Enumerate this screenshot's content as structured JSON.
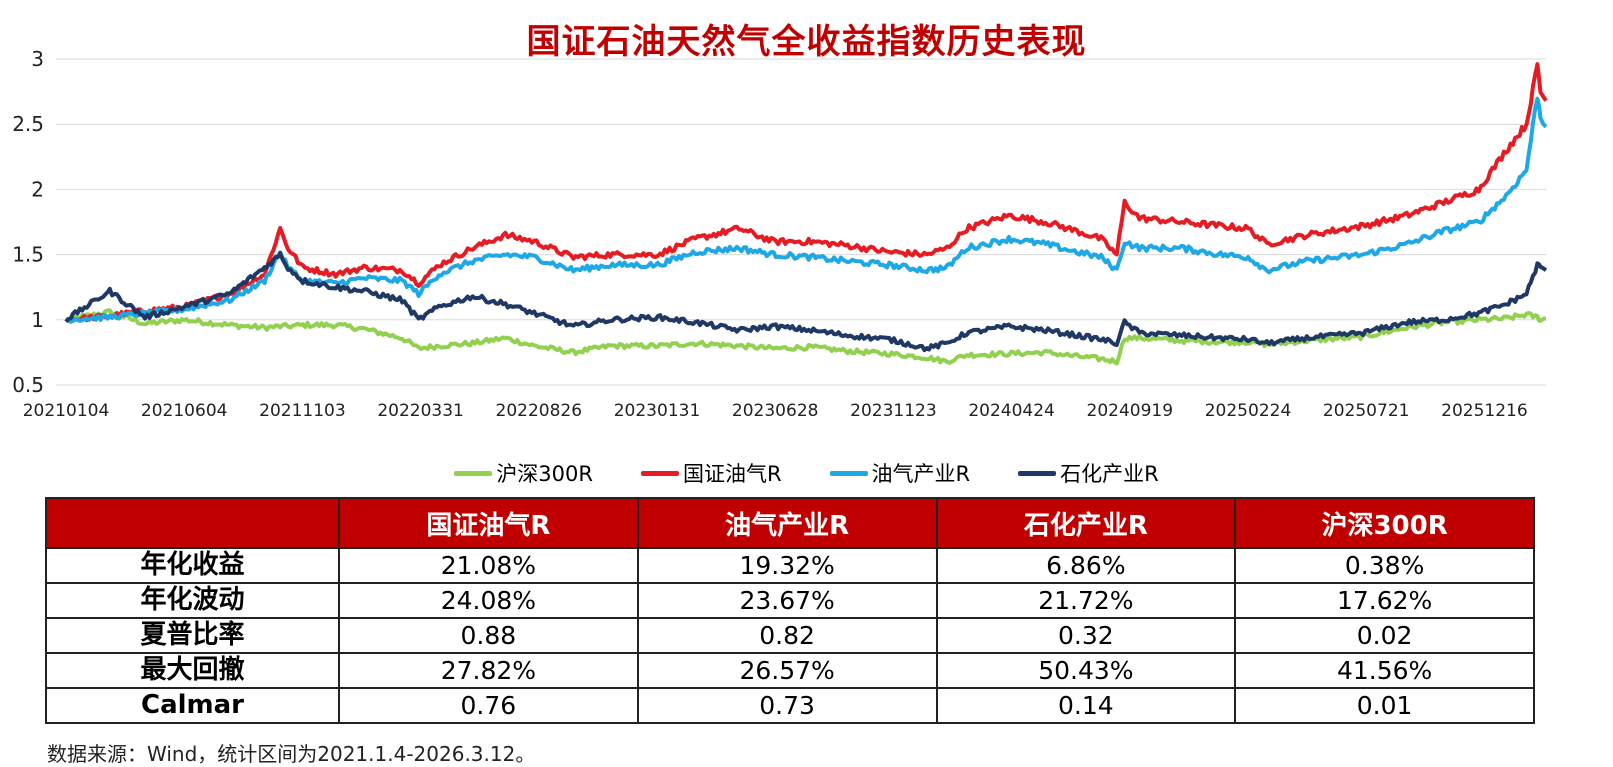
{
  "chart_data": {
    "type": "line",
    "title": "国证石油天然气全收益指数历史表现",
    "xlabel": "",
    "ylabel": "",
    "ylim": [
      0.5,
      3
    ],
    "yticks": [
      "0.5",
      "1",
      "1.5",
      "2",
      "2.5",
      "3"
    ],
    "grid": "horizontal",
    "legend_position": "bottom",
    "x_tick_labels": [
      "20210104",
      "20210604",
      "20211103",
      "20220331",
      "20220826",
      "20230131",
      "20230628",
      "20231123",
      "20240424",
      "20240919",
      "20250224",
      "20250721",
      "20251216"
    ],
    "x": [
      "2021-01-04",
      "2021-03-01",
      "2021-04-15",
      "2021-06-04",
      "2021-08-01",
      "2021-09-15",
      "2021-10-05",
      "2021-10-15",
      "2021-11-03",
      "2021-12-15",
      "2022-01-20",
      "2022-03-10",
      "2022-03-31",
      "2022-04-26",
      "2022-06-08",
      "2022-07-20",
      "2022-08-26",
      "2022-10-15",
      "2022-12-01",
      "2023-01-31",
      "2023-03-20",
      "2023-05-15",
      "2023-06-28",
      "2023-08-15",
      "2023-10-01",
      "2023-11-23",
      "2024-01-10",
      "2024-02-05",
      "2024-03-01",
      "2024-04-24",
      "2024-06-10",
      "2024-07-20",
      "2024-08-20",
      "2024-09-09",
      "2024-09-19",
      "2024-10-08",
      "2024-12-01",
      "2025-01-20",
      "2025-02-24",
      "2025-03-20",
      "2025-05-10",
      "2025-07-21",
      "2025-09-15",
      "2025-11-01",
      "2025-12-16",
      "2026-01-20",
      "2026-02-15",
      "2026-03-01",
      "2026-03-05",
      "2026-03-12"
    ],
    "series": [
      {
        "name": "沪深300R",
        "color": "#92d050",
        "values": [
          1.0,
          1.06,
          0.97,
          1.0,
          0.96,
          0.94,
          0.95,
          0.95,
          0.96,
          0.96,
          0.93,
          0.86,
          0.78,
          0.8,
          0.82,
          0.86,
          0.8,
          0.75,
          0.8,
          0.8,
          0.82,
          0.8,
          0.78,
          0.79,
          0.76,
          0.74,
          0.71,
          0.68,
          0.73,
          0.74,
          0.75,
          0.72,
          0.7,
          0.68,
          0.86,
          0.86,
          0.84,
          0.83,
          0.83,
          0.81,
          0.84,
          0.87,
          0.94,
          0.98,
          1.0,
          1.01,
          1.04,
          1.02,
          1.0,
          1.01
        ]
      },
      {
        "name": "国证油气R",
        "color": "#e51c23",
        "values": [
          1.0,
          1.03,
          1.07,
          1.1,
          1.2,
          1.35,
          1.7,
          1.55,
          1.4,
          1.35,
          1.4,
          1.38,
          1.28,
          1.42,
          1.55,
          1.65,
          1.6,
          1.48,
          1.5,
          1.5,
          1.62,
          1.7,
          1.6,
          1.6,
          1.57,
          1.52,
          1.5,
          1.55,
          1.7,
          1.8,
          1.75,
          1.68,
          1.62,
          1.5,
          1.9,
          1.78,
          1.75,
          1.72,
          1.7,
          1.58,
          1.65,
          1.72,
          1.8,
          1.9,
          2.0,
          2.3,
          2.5,
          2.95,
          2.75,
          2.68
        ]
      },
      {
        "name": "油气产业R",
        "color": "#1ea8e6",
        "values": [
          1.0,
          1.02,
          1.05,
          1.08,
          1.15,
          1.3,
          1.52,
          1.4,
          1.3,
          1.28,
          1.32,
          1.3,
          1.2,
          1.35,
          1.45,
          1.5,
          1.48,
          1.38,
          1.42,
          1.42,
          1.52,
          1.55,
          1.5,
          1.48,
          1.45,
          1.42,
          1.38,
          1.4,
          1.55,
          1.62,
          1.58,
          1.52,
          1.48,
          1.38,
          1.6,
          1.55,
          1.55,
          1.5,
          1.48,
          1.38,
          1.45,
          1.5,
          1.58,
          1.68,
          1.75,
          1.95,
          2.15,
          2.72,
          2.55,
          2.48
        ]
      },
      {
        "name": "石化产业R",
        "color": "#1f3864",
        "values": [
          1.0,
          1.22,
          1.02,
          1.1,
          1.2,
          1.4,
          1.5,
          1.4,
          1.3,
          1.25,
          1.22,
          1.15,
          1.0,
          1.1,
          1.18,
          1.12,
          1.05,
          0.95,
          1.0,
          1.02,
          0.98,
          0.92,
          0.95,
          0.92,
          0.88,
          0.85,
          0.78,
          0.82,
          0.9,
          0.95,
          0.92,
          0.88,
          0.85,
          0.82,
          0.98,
          0.9,
          0.88,
          0.86,
          0.85,
          0.82,
          0.86,
          0.9,
          0.98,
          1.0,
          1.05,
          1.12,
          1.2,
          1.42,
          1.4,
          1.38
        ]
      }
    ]
  },
  "table": {
    "headers": [
      "",
      "国证油气R",
      "油气产业R",
      "石化产业R",
      "沪深300R"
    ],
    "rows": [
      {
        "label": "年化收益",
        "cells": [
          "21.08%",
          "19.32%",
          "6.86%",
          "0.38%"
        ]
      },
      {
        "label": "年化波动",
        "cells": [
          "24.08%",
          "23.67%",
          "21.72%",
          "17.62%"
        ]
      },
      {
        "label": "夏普比率",
        "cells": [
          "0.88",
          "0.82",
          "0.32",
          "0.02"
        ]
      },
      {
        "label": "最大回撤",
        "cells": [
          "27.82%",
          "26.57%",
          "50.43%",
          "41.56%"
        ]
      },
      {
        "label": "Calmar",
        "cells": [
          "0.76",
          "0.73",
          "0.14",
          "0.01"
        ]
      }
    ]
  },
  "source_note": "数据来源：Wind，统计区间为2021.1.4-2026.3.12。"
}
